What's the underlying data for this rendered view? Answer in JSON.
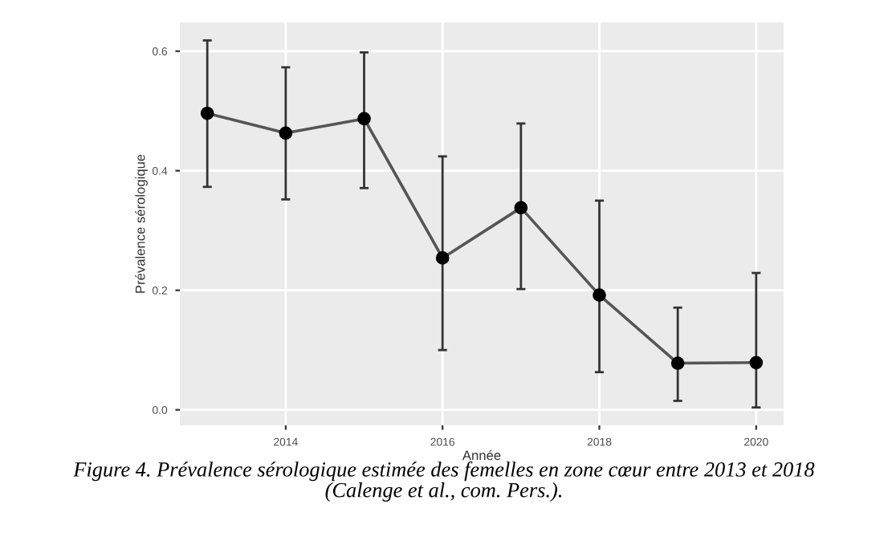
{
  "chart_data": {
    "type": "line",
    "xlabel": "Année",
    "ylabel": "Prévalence sérologique",
    "x": [
      2013,
      2014,
      2015,
      2016,
      2017,
      2018,
      2019,
      2020
    ],
    "values": [
      0.496,
      0.463,
      0.487,
      0.254,
      0.338,
      0.192,
      0.078,
      0.079
    ],
    "errors": [
      [
        0.373,
        0.618
      ],
      [
        0.352,
        0.573
      ],
      [
        0.371,
        0.598
      ],
      [
        0.1,
        0.424
      ],
      [
        0.202,
        0.479
      ],
      [
        0.063,
        0.35
      ],
      [
        0.015,
        0.171
      ],
      [
        0.004,
        0.229
      ]
    ],
    "color": "#555555",
    "marker": "circle",
    "line_style": "solid",
    "xlim": [
      2012.65,
      2020.35
    ],
    "xticks": [
      2014,
      2016,
      2018,
      2020
    ],
    "ylim": [
      -0.026,
      0.648
    ],
    "yticks": [
      {
        "value": 0,
        "label": "0.0"
      },
      {
        "value": 0.2,
        "label": "0.2"
      },
      {
        "value": 0.4,
        "label": "0.4"
      },
      {
        "value": 0.6,
        "label": "0.6"
      }
    ],
    "grid": true,
    "annotations": [
      "Figure 4. Prévalence sérologique estimée des femelles en zone cœur entre 2013 et 2018\n(Calenge et al., com. Pers.)."
    ]
  }
}
